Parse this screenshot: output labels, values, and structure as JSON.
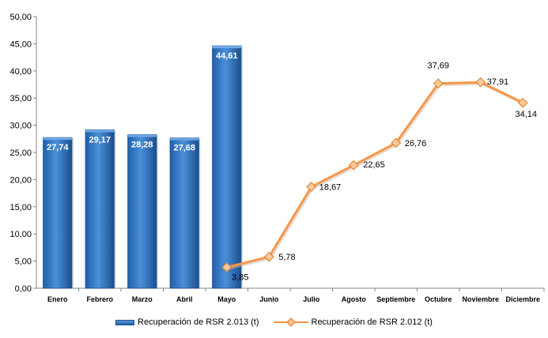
{
  "chart_data": {
    "type": "bar",
    "categories": [
      "Enero",
      "Febrero",
      "Marzo",
      "Abril",
      "Mayo",
      "Junio",
      "Julio",
      "Agosto",
      "Septiembre",
      "Octubre",
      "Noviembre",
      "Diciembre"
    ],
    "y_ticks": [
      "0,00",
      "5,00",
      "10,00",
      "15,00",
      "20,00",
      "25,00",
      "30,00",
      "35,00",
      "40,00",
      "45,00",
      "50,00"
    ],
    "ylim": [
      0,
      50
    ],
    "grid": false,
    "legend_position": "bottom",
    "series": [
      {
        "name": "Recuperación de RSR 2.013 (t)",
        "type": "bar",
        "color": "#2e75c8",
        "values": [
          27.74,
          29.17,
          28.28,
          27.68,
          44.61,
          null,
          null,
          null,
          null,
          null,
          null,
          null
        ],
        "labels": [
          "27,74",
          "29,17",
          "28,28",
          "27,68",
          "44,61",
          "",
          "",
          "",
          "",
          "",
          "",
          ""
        ]
      },
      {
        "name": "Recuperación de RSR 2.012 (t)",
        "type": "line",
        "color": "#f79646",
        "values": [
          null,
          null,
          null,
          null,
          3.85,
          5.78,
          18.67,
          22.65,
          26.76,
          37.69,
          37.91,
          34.14
        ],
        "labels": [
          "",
          "",
          "",
          "",
          "3,85",
          "5,78",
          "18,67",
          "22,65",
          "26,76",
          "37,69",
          "37,91",
          "34,14"
        ]
      }
    ]
  }
}
